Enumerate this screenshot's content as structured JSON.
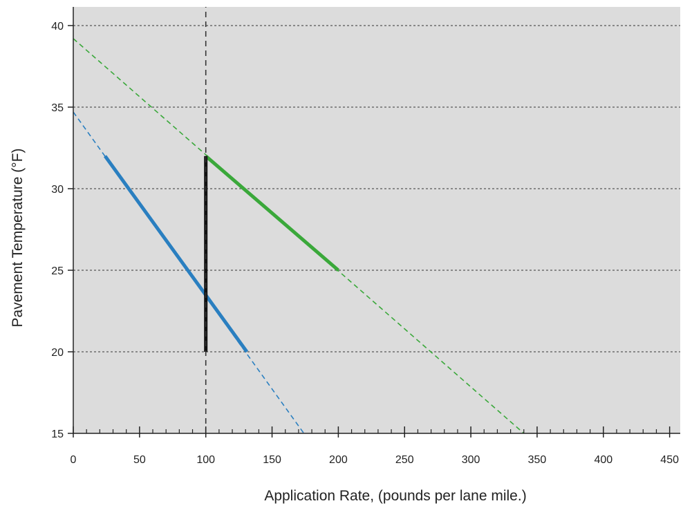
{
  "chart_data": {
    "type": "line",
    "title": "",
    "xlabel": "Application Rate, (pounds per lane mile.)",
    "ylabel": "Pavement Temperature (°F)",
    "xlim": [
      0,
      450
    ],
    "ylim": [
      15,
      40
    ],
    "x_ticks": [
      "0",
      "50",
      "100",
      "150",
      "200",
      "250",
      "300",
      "350",
      "400",
      "450"
    ],
    "y_ticks": [
      "15",
      "20",
      "25",
      "30",
      "35",
      "40"
    ],
    "x_minor_step": 10,
    "grid": "horizontal dotted at major y ticks",
    "legend": "none",
    "series": [
      {
        "color": "#2a7fc0",
        "style": "solid",
        "points": [
          [
            24,
            32
          ],
          [
            131,
            20
          ]
        ]
      },
      {
        "color": "#2a7fc0",
        "style": "dashed",
        "points": [
          [
            0,
            34.7
          ],
          [
            174,
            15
          ]
        ]
      },
      {
        "color": "#3aa83a",
        "style": "solid",
        "points": [
          [
            100,
            32
          ],
          [
            200,
            25
          ]
        ]
      },
      {
        "color": "#3aa83a",
        "style": "dashed",
        "points": [
          [
            0,
            39.2
          ],
          [
            340,
            15
          ]
        ]
      },
      {
        "color": "#111111",
        "style": "solid",
        "points": [
          [
            100,
            20
          ],
          [
            100,
            32
          ]
        ]
      },
      {
        "color": "#333333",
        "style": "dashed",
        "points": [
          [
            100,
            15
          ],
          [
            100,
            41.2
          ]
        ]
      }
    ],
    "colors": {
      "plot_background": "#dcdcdc",
      "blue": "#2a7fc0",
      "green": "#3aa83a",
      "black": "#111111"
    }
  }
}
